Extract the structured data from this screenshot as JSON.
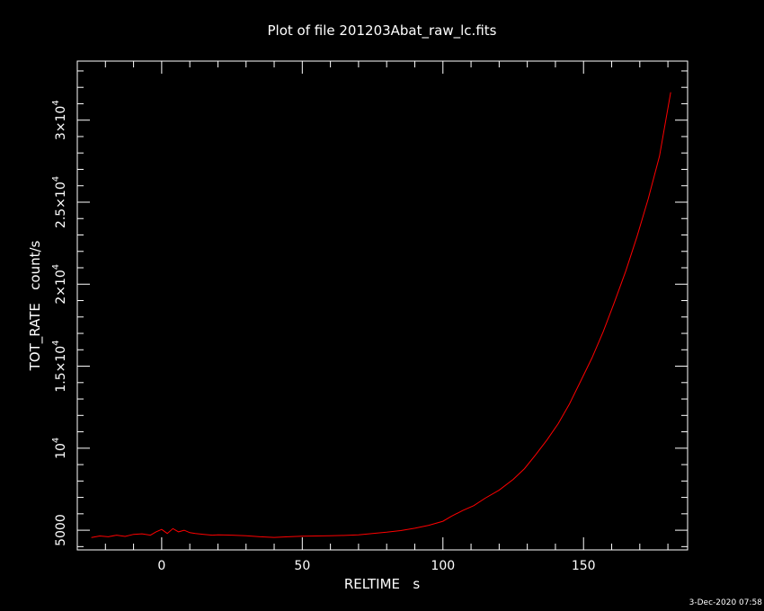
{
  "chart_data": {
    "type": "line",
    "title": "Plot of file 201203Abat_raw_lc.fits",
    "xlabel": "RELTIME   s",
    "ylabel": "TOT_RATE   count/s",
    "xlim": [
      -30,
      187
    ],
    "ylim": [
      3800,
      33600
    ],
    "x_ticks": [
      {
        "value": 0,
        "label": "0"
      },
      {
        "value": 50,
        "label": "50"
      },
      {
        "value": 100,
        "label": "100"
      },
      {
        "value": 150,
        "label": "150"
      }
    ],
    "y_ticks": [
      {
        "value": 5000,
        "mantissa": "5000",
        "exp": ""
      },
      {
        "value": 10000,
        "mantissa": "10",
        "exp": "4"
      },
      {
        "value": 15000,
        "mantissa": "1.5×10",
        "exp": "4"
      },
      {
        "value": 20000,
        "mantissa": "2×10",
        "exp": "4"
      },
      {
        "value": 25000,
        "mantissa": "2.5×10",
        "exp": "4"
      },
      {
        "value": 30000,
        "mantissa": "3×10",
        "exp": "4"
      }
    ],
    "grid": false,
    "series": [
      {
        "color": "#ff0000",
        "x": [
          -25,
          -22,
          -19,
          -16,
          -13,
          -10,
          -7,
          -4,
          -2,
          0,
          2,
          4,
          6,
          8,
          10,
          12,
          15,
          18,
          20,
          25,
          30,
          35,
          40,
          45,
          50,
          55,
          60,
          65,
          70,
          75,
          80,
          85,
          90,
          95,
          100,
          103,
          107,
          111,
          115,
          120,
          125,
          129,
          133,
          137,
          141,
          145,
          149,
          153,
          157,
          161,
          165,
          169,
          173,
          177,
          181
        ],
        "y": [
          4550,
          4650,
          4600,
          4700,
          4620,
          4750,
          4780,
          4700,
          4900,
          5050,
          4800,
          5100,
          4900,
          5000,
          4850,
          4800,
          4750,
          4700,
          4720,
          4700,
          4660,
          4600,
          4560,
          4600,
          4640,
          4650,
          4660,
          4680,
          4720,
          4800,
          4880,
          4980,
          5120,
          5300,
          5550,
          5850,
          6200,
          6500,
          6950,
          7450,
          8100,
          8750,
          9600,
          10500,
          11500,
          12700,
          14100,
          15500,
          17100,
          18900,
          20800,
          22900,
          25200,
          27800,
          31700
        ]
      }
    ]
  },
  "footer": {
    "timestamp": "3-Dec-2020 07:58"
  }
}
